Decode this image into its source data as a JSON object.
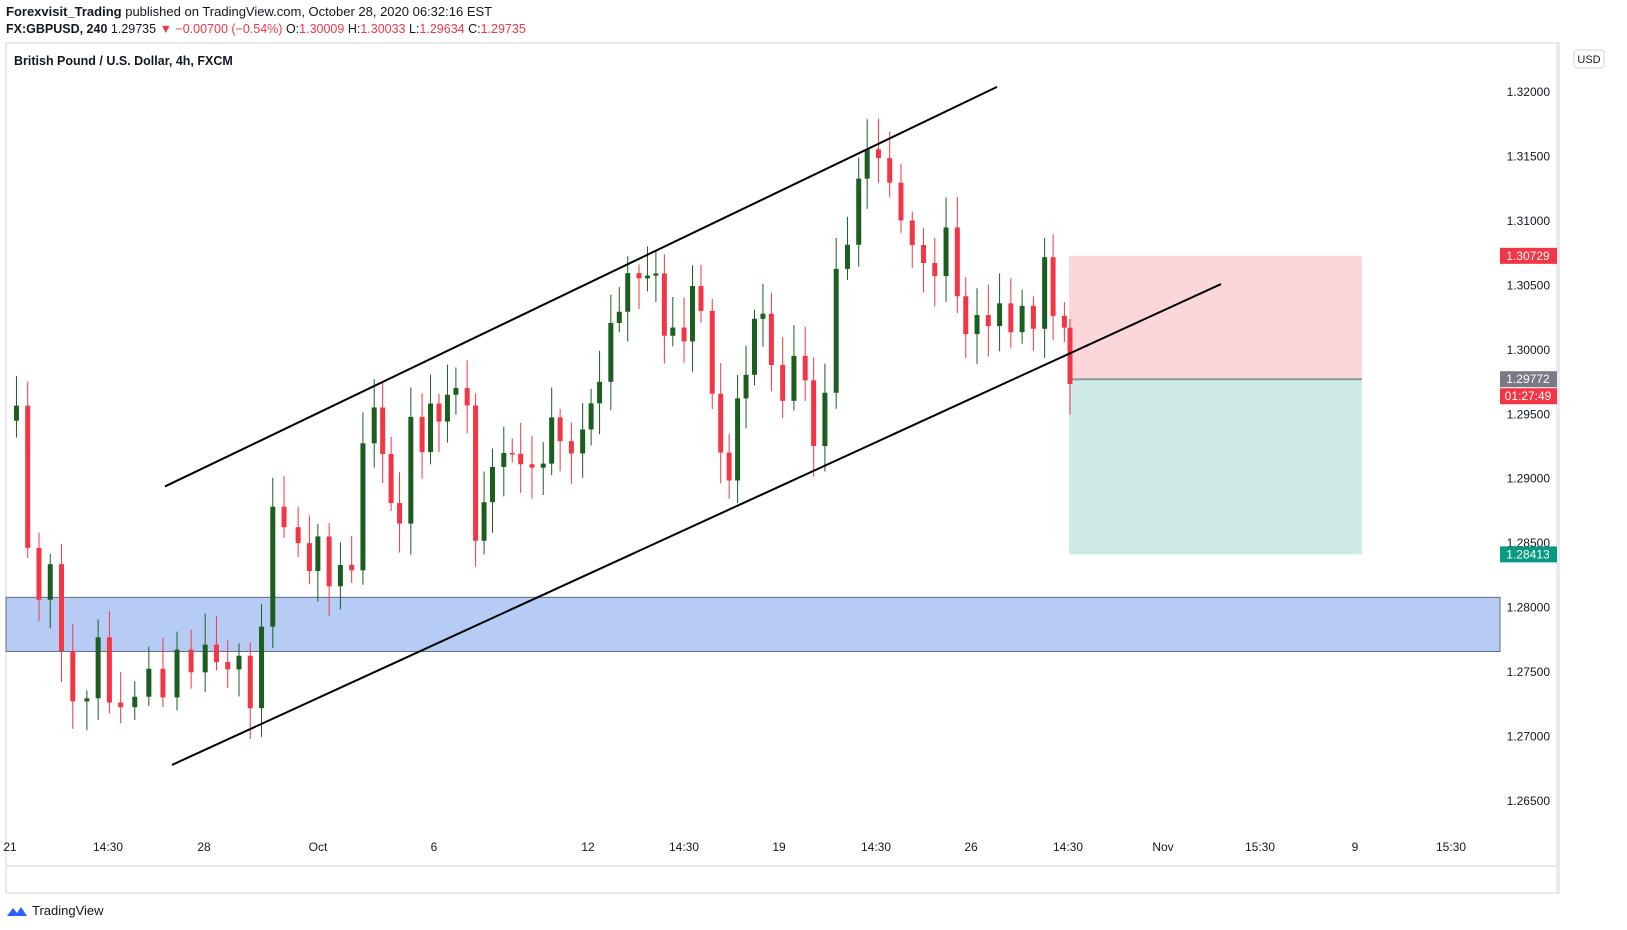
{
  "header": {
    "author": "Forexvisit_Trading",
    "published_text": "published on TradingView.com, October 28, 2020 06:32:16 EST",
    "symbol_tf": "FX:GBPUSD, 240",
    "last": "1.29735",
    "change": "▼ −0.00700 (−0.54%)",
    "o_label": "O:",
    "o_value": "1.30009",
    "h_label": "H:",
    "h_value": "1.30033",
    "l_label": "L:",
    "l_value": "1.29634",
    "c_label": "C:",
    "c_value": "1.29735"
  },
  "chart_data": {
    "type": "candlestick",
    "title": "British Pound / U.S. Dollar, 4h, FXCM",
    "currency_label": "USD",
    "ylim": [
      1.2615,
      1.3245
    ],
    "y_ticks": [
      "1.32000",
      "1.31500",
      "1.31000",
      "1.30500",
      "1.30000",
      "1.29500",
      "1.29000",
      "1.28500",
      "1.28000",
      "1.27500",
      "1.27000",
      "1.26500"
    ],
    "x_ticks": [
      "21",
      "14:30",
      "28",
      "Oct",
      "6",
      "12",
      "14:30",
      "19",
      "14:30",
      "26",
      "14:30",
      "Nov",
      "15:30",
      "9",
      "15:30"
    ],
    "price_labels": [
      {
        "text": "1.30729",
        "value": 1.30729,
        "color": "#f23645"
      },
      {
        "text": "1.29772",
        "value": 1.29772,
        "color": "#787b86"
      },
      {
        "text": "01:27:49",
        "value": 1.29772,
        "color": "#f23645",
        "below": true
      },
      {
        "text": "1.28413",
        "value": 1.28413,
        "color": "#089981"
      }
    ],
    "zone": {
      "low": 1.2766,
      "high": 1.2808,
      "color": "#b6ccf5"
    },
    "channel": {
      "upper_start": 1.2894,
      "upper_end": 1.3204,
      "lower_start": 1.2678,
      "lower_end": 1.3051
    },
    "position": {
      "entry": 1.29772,
      "stop": 1.30729,
      "target": 1.28413
    },
    "last_close": 1.29735,
    "up_color": "#1b5e20",
    "down_color": "#f23645"
  },
  "branding": {
    "logo_text": "TradingView"
  }
}
